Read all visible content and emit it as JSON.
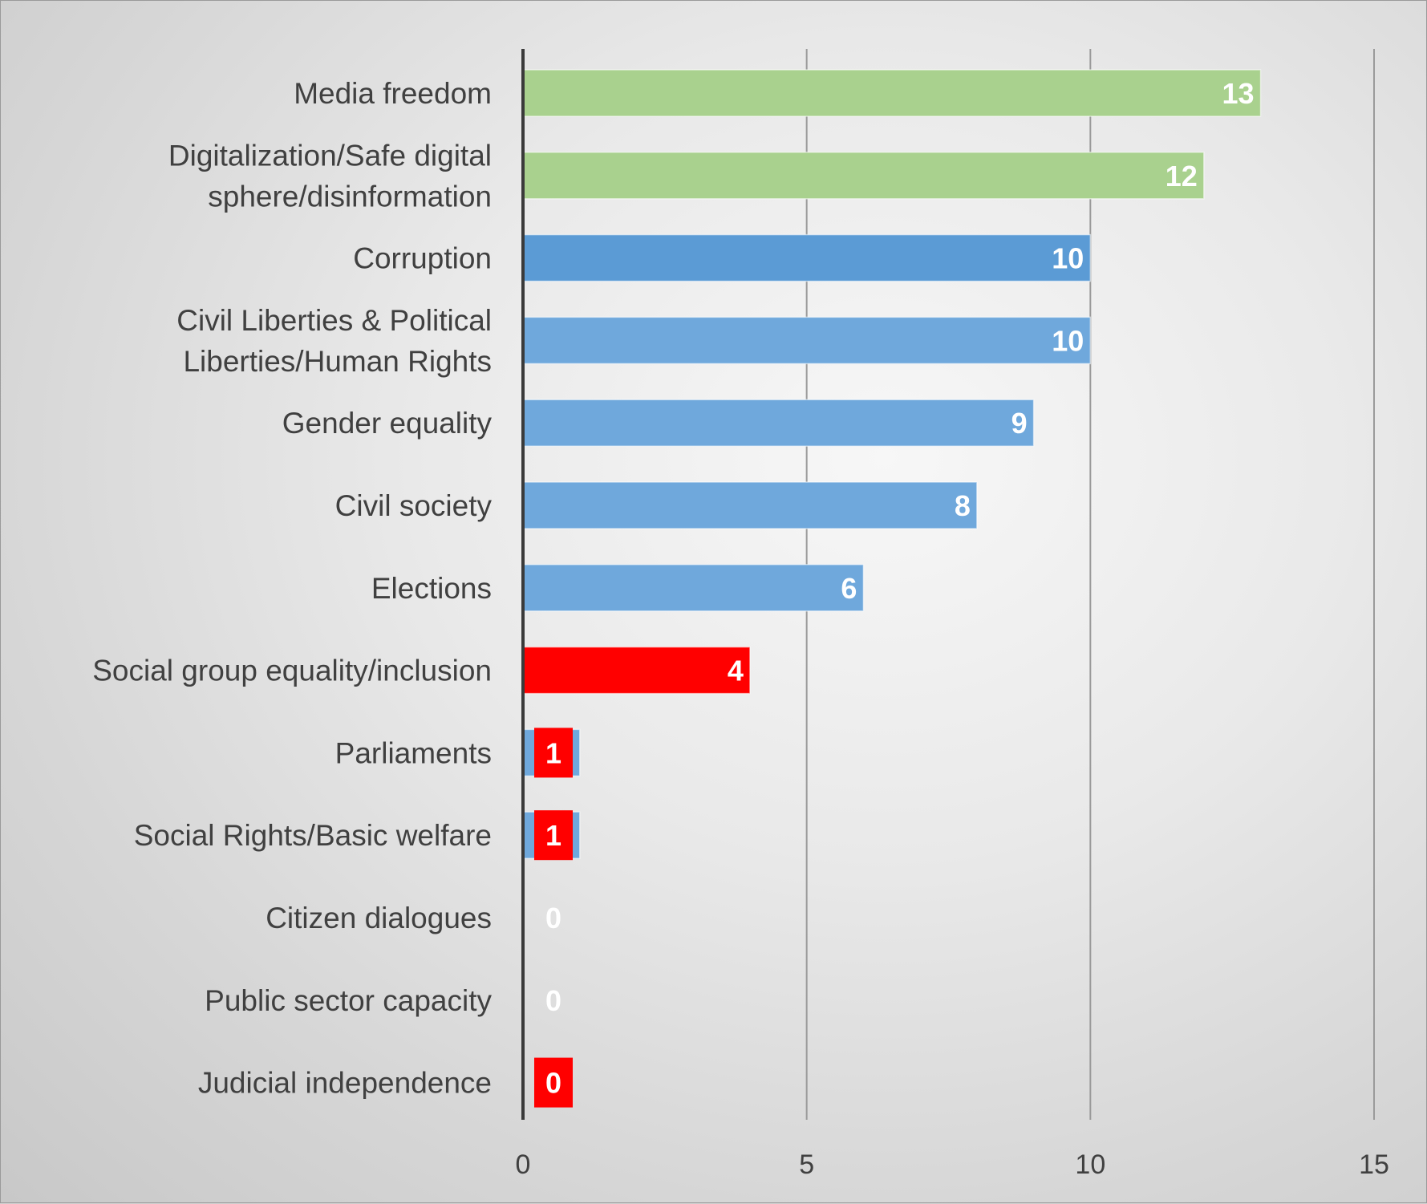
{
  "colors": {
    "green": "#a9d18e",
    "blue_dark": "#5b9bd5",
    "blue": "#6fa8dc",
    "red": "#ff0000",
    "label_text": "#404040",
    "gridline": "#9a9a9a",
    "axis": "#3a3a3a"
  },
  "chart_data": {
    "type": "bar",
    "orientation": "horizontal",
    "title": "",
    "xlabel": "",
    "ylabel": "",
    "xlim": [
      0,
      15
    ],
    "x_ticks": [
      0,
      5,
      10,
      15
    ],
    "grid": "vertical",
    "legend": "none",
    "categories": [
      [
        "Media freedom"
      ],
      [
        "Digitalization/Safe digital",
        "sphere/disinformation"
      ],
      [
        "Corruption"
      ],
      [
        "Civil Liberties & Political",
        "Liberties/Human Rights"
      ],
      [
        "Gender equality"
      ],
      [
        "Civil society"
      ],
      [
        "Elections"
      ],
      [
        "Social group equality/inclusion"
      ],
      [
        "Parliaments"
      ],
      [
        "Social Rights/Basic welfare"
      ],
      [
        "Citizen dialogues"
      ],
      [
        "Public sector capacity"
      ],
      [
        "Judicial independence"
      ]
    ],
    "values": [
      13,
      12,
      10,
      10,
      9,
      8,
      6,
      4,
      1,
      1,
      0,
      0,
      0
    ],
    "bar_colors": [
      "green",
      "green",
      "blue_dark",
      "blue",
      "blue",
      "blue",
      "blue",
      "red",
      "blue",
      "blue",
      "none",
      "none",
      "none"
    ],
    "data_labels": [
      "13",
      "12",
      "10",
      "10",
      "9",
      "8",
      "6",
      "4",
      "1",
      "1",
      "0",
      "0",
      "0"
    ],
    "data_label_badges": [
      "none",
      "none",
      "none",
      "none",
      "none",
      "none",
      "none",
      "none",
      "red",
      "red",
      "none",
      "none",
      "red"
    ]
  }
}
